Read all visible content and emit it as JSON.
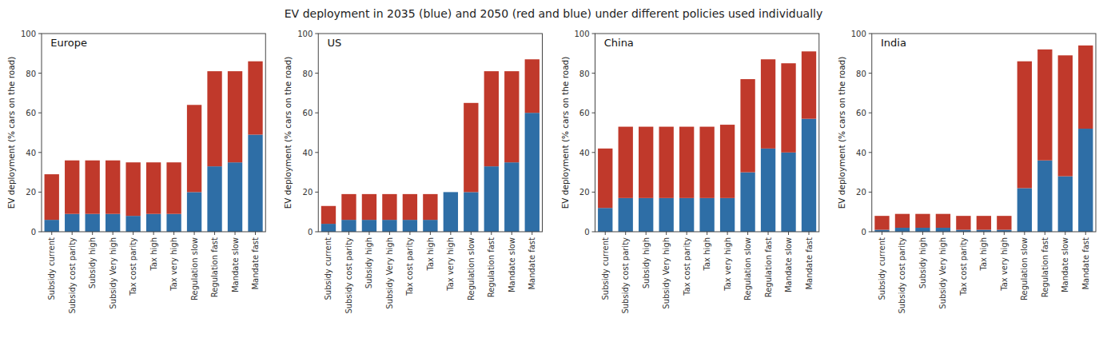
{
  "title": "EV deployment in 2035 (blue) and 2050 (red and blue) under different policies used individually",
  "chart_data": [
    {
      "type": "bar",
      "title": "Europe",
      "ylabel": "EV deployment (% cars on the road)",
      "categories": [
        "Subsidy current",
        "Subsidy cost parity",
        "Subsidy high",
        "Subsidy Very high",
        "Tax cost parity",
        "Tax high",
        "Tax very high",
        "Regulation slow",
        "Regulation fast",
        "Mandate slow",
        "Mandate fast"
      ],
      "series": [
        {
          "color": "#2E6EA6",
          "values": [
            6,
            9,
            9,
            9,
            8,
            9,
            9,
            20,
            33,
            35,
            49
          ]
        },
        {
          "color": "#C0392B",
          "values": [
            23,
            27,
            27,
            27,
            27,
            26,
            26,
            44,
            48,
            46,
            37
          ]
        }
      ],
      "stacked": true,
      "grid": false,
      "ylim": [
        0,
        100
      ],
      "yticks": [
        0,
        20,
        40,
        60,
        80,
        100
      ]
    },
    {
      "type": "bar",
      "title": "US",
      "ylabel": "EV deployment (% cars on the road)",
      "categories": [
        "Subsidy current",
        "Subsidy cost parity",
        "Subsidy high",
        "Subsidy Very high",
        "Tax cost parity",
        "Tax high",
        "Tax very high",
        "Regulation slow",
        "Regulation fast",
        "Mandate slow",
        "Mandate fast"
      ],
      "series": [
        {
          "color": "#2E6EA6",
          "values": [
            4,
            6,
            6,
            6,
            6,
            6,
            20,
            20,
            33,
            35,
            60
          ]
        },
        {
          "color": "#C0392B",
          "values": [
            9,
            13,
            13,
            13,
            13,
            13,
            0,
            45,
            48,
            46,
            27
          ]
        }
      ],
      "stacked": true,
      "grid": false,
      "ylim": [
        0,
        100
      ],
      "yticks": [
        0,
        20,
        40,
        60,
        80,
        100
      ]
    },
    {
      "type": "bar",
      "title": "China",
      "ylabel": "EV deployment (% cars on the road)",
      "categories": [
        "Subsidy current",
        "Subsidy cost parity",
        "Subsidy high",
        "Subsidy Very high",
        "Tax cost parity",
        "Tax high",
        "Tax very high",
        "Regulation slow",
        "Regulation fast",
        "Mandate slow",
        "Mandate fast"
      ],
      "series": [
        {
          "color": "#2E6EA6",
          "values": [
            12,
            17,
            17,
            17,
            17,
            17,
            17,
            30,
            42,
            40,
            57
          ]
        },
        {
          "color": "#C0392B",
          "values": [
            30,
            36,
            36,
            36,
            36,
            36,
            37,
            47,
            45,
            45,
            34
          ]
        }
      ],
      "stacked": true,
      "grid": false,
      "ylim": [
        0,
        100
      ],
      "yticks": [
        0,
        20,
        40,
        60,
        80,
        100
      ]
    },
    {
      "type": "bar",
      "title": "India",
      "ylabel": "EV deployment (% cars on the road)",
      "categories": [
        "Subsidy current",
        "Subsidy cost parity",
        "Subsidy high",
        "Subsidy Very high",
        "Tax cost parity",
        "Tax high",
        "Tax very high",
        "Regulation slow",
        "Regulation fast",
        "Mandate slow",
        "Mandate fast"
      ],
      "series": [
        {
          "color": "#2E6EA6",
          "values": [
            1,
            2,
            2,
            2,
            1,
            1,
            1,
            22,
            36,
            28,
            52
          ]
        },
        {
          "color": "#C0392B",
          "values": [
            7,
            7,
            7,
            7,
            7,
            7,
            7,
            64,
            56,
            61,
            42
          ]
        }
      ],
      "stacked": true,
      "grid": false,
      "ylim": [
        0,
        100
      ],
      "yticks": [
        0,
        20,
        40,
        60,
        80,
        100
      ]
    }
  ]
}
